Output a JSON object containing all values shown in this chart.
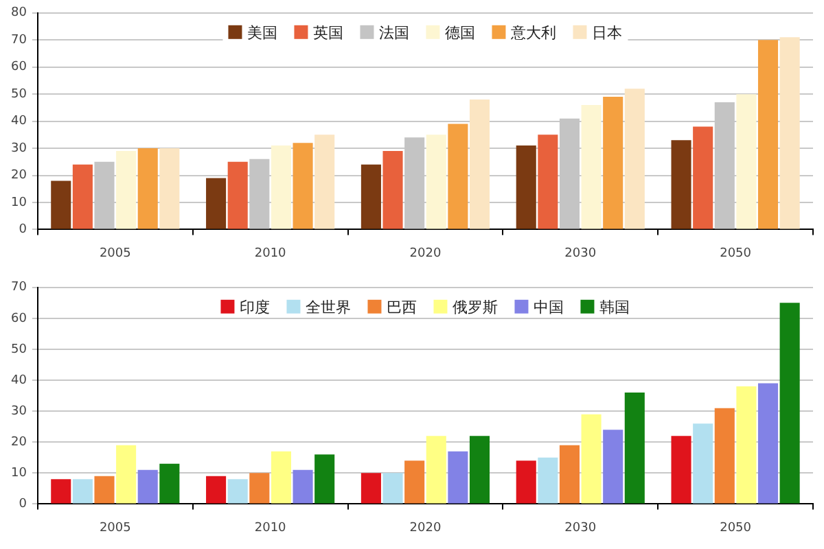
{
  "chart_data": [
    {
      "type": "bar",
      "categories": [
        "2005",
        "2010",
        "2020",
        "2030",
        "2050"
      ],
      "series": [
        {
          "name": "美国",
          "color": "#7b3a12",
          "values": [
            18,
            19,
            24,
            31,
            33
          ]
        },
        {
          "name": "英国",
          "color": "#e8613c",
          "values": [
            24,
            25,
            29,
            35,
            38
          ]
        },
        {
          "name": "法国",
          "color": "#c4c4c4",
          "values": [
            25,
            26,
            34,
            41,
            47
          ]
        },
        {
          "name": "德国",
          "color": "#fdf6d2",
          "values": [
            29,
            31,
            35,
            46,
            50
          ]
        },
        {
          "name": "意大利",
          "color": "#f4a040",
          "values": [
            30,
            32,
            39,
            49,
            70
          ]
        },
        {
          "name": "日本",
          "color": "#fbe5c2",
          "values": [
            30,
            35,
            48,
            52,
            71
          ]
        }
      ],
      "ylim": [
        0,
        80
      ],
      "yticks": [
        0,
        10,
        20,
        30,
        40,
        50,
        60,
        70,
        80
      ],
      "grid": "y",
      "legend": "top"
    },
    {
      "type": "bar",
      "categories": [
        "2005",
        "2010",
        "2020",
        "2030",
        "2050"
      ],
      "series": [
        {
          "name": "印度",
          "color": "#e0141c",
          "values": [
            8,
            9,
            10,
            14,
            22
          ]
        },
        {
          "name": "全世界",
          "color": "#b2e0f0",
          "values": [
            8,
            8,
            10,
            15,
            26
          ]
        },
        {
          "name": "巴西",
          "color": "#f08234",
          "values": [
            9,
            10,
            14,
            19,
            31
          ]
        },
        {
          "name": "俄罗斯",
          "color": "#ffff84",
          "values": [
            19,
            17,
            22,
            29,
            38
          ]
        },
        {
          "name": "中国",
          "color": "#8282e6",
          "values": [
            11,
            11,
            17,
            24,
            39
          ]
        },
        {
          "name": "韩国",
          "color": "#128212",
          "values": [
            13,
            16,
            22,
            36,
            65
          ]
        }
      ],
      "ylim": [
        0,
        70
      ],
      "yticks": [
        0,
        10,
        20,
        30,
        40,
        50,
        60,
        70
      ],
      "grid": "y",
      "legend": "top"
    }
  ]
}
